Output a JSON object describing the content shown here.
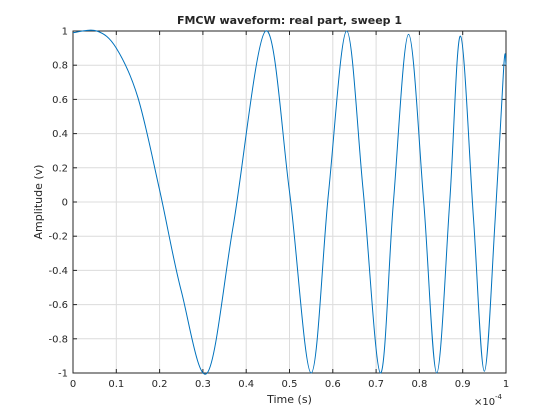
{
  "chart_data": {
    "type": "line",
    "title": "FMCW waveform: real part, sweep 1",
    "xlabel": "Time (s)",
    "ylabel": "Amplitude (v)",
    "x_exponent_label": "×10",
    "x_exponent_power": "-4",
    "xlim": [
      0,
      1
    ],
    "ylim": [
      -1,
      1
    ],
    "x_ticks": [
      "0",
      "0.1",
      "0.2",
      "0.3",
      "0.4",
      "0.5",
      "0.6",
      "0.7",
      "0.8",
      "0.9",
      "1"
    ],
    "y_ticks": [
      "1",
      "0.8",
      "0.6",
      "0.4",
      "0.2",
      "0",
      "-0.2",
      "-0.4",
      "-0.6",
      "-0.8",
      "-1"
    ],
    "grid": true,
    "line_color": "#0072bd",
    "series": [
      {
        "x": [
          0,
          0.055,
          0.1,
          0.15,
          0.2,
          0.25,
          0.31,
          0.37,
          0.445,
          0.5,
          0.55,
          0.59,
          0.632,
          0.67,
          0.71,
          0.74,
          0.775,
          0.81,
          0.84,
          0.87,
          0.895,
          0.925,
          0.95,
          0.975,
          0.995,
          1.0
        ],
        "y": [
          0.99,
          1.0,
          0.9,
          0.61,
          0.07,
          -0.52,
          -1.0,
          -0.14,
          1.0,
          0.06,
          -1.0,
          0.05,
          1.0,
          0.07,
          -1.0,
          0.0,
          0.98,
          0.0,
          -1.0,
          0.0,
          0.97,
          -0.1,
          -0.99,
          -0.1,
          0.8,
          0.8
        ]
      }
    ]
  }
}
